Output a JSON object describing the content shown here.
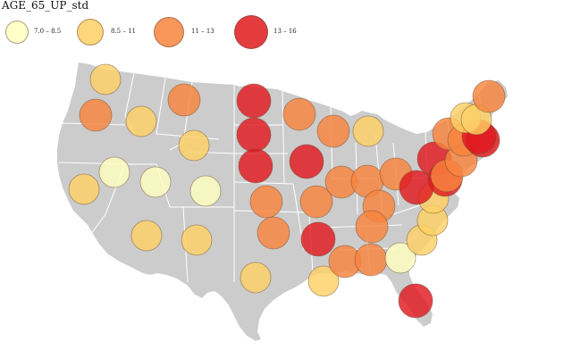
{
  "map": {
    "title": "AGE_65_UP_std",
    "colors": {
      "land": "#cccccc",
      "state_border": "#ffffff"
    }
  },
  "legend": {
    "items": [
      {
        "label": "7.0 – 8.5",
        "color": "#ffffbf"
      },
      {
        "label": "8.5 – 11",
        "color": "#fed165"
      },
      {
        "label": "11 – 13",
        "color": "#f8843e"
      },
      {
        "label": "13 – 16",
        "color": "#e0191e"
      }
    ]
  },
  "bubbles": [
    {
      "state": "WA",
      "class": 2
    },
    {
      "state": "OR",
      "class": 3
    },
    {
      "state": "CA",
      "class": 2
    },
    {
      "state": "ID",
      "class": 2
    },
    {
      "state": "NV",
      "class": 1
    },
    {
      "state": "MT",
      "class": 3
    },
    {
      "state": "WY",
      "class": 2
    },
    {
      "state": "UT",
      "class": 1
    },
    {
      "state": "CO",
      "class": 1
    },
    {
      "state": "AZ",
      "class": 2
    },
    {
      "state": "NM",
      "class": 2
    },
    {
      "state": "ND",
      "class": 4
    },
    {
      "state": "SD",
      "class": 4
    },
    {
      "state": "NE",
      "class": 4
    },
    {
      "state": "KS",
      "class": 3
    },
    {
      "state": "OK",
      "class": 3
    },
    {
      "state": "TX",
      "class": 2
    },
    {
      "state": "MN",
      "class": 3
    },
    {
      "state": "IA",
      "class": 4
    },
    {
      "state": "MO",
      "class": 3
    },
    {
      "state": "AR",
      "class": 4
    },
    {
      "state": "LA",
      "class": 2
    },
    {
      "state": "WI",
      "class": 3
    },
    {
      "state": "IL",
      "class": 3
    },
    {
      "state": "MI",
      "class": 2
    },
    {
      "state": "IN",
      "class": 3
    },
    {
      "state": "OH",
      "class": 3
    },
    {
      "state": "KY",
      "class": 3
    },
    {
      "state": "TN",
      "class": 3
    },
    {
      "state": "MS",
      "class": 3
    },
    {
      "state": "AL",
      "class": 3
    },
    {
      "state": "GA",
      "class": 1
    },
    {
      "state": "FL",
      "class": 4
    },
    {
      "state": "SC",
      "class": 2
    },
    {
      "state": "NC",
      "class": 2
    },
    {
      "state": "VA",
      "class": 2
    },
    {
      "state": "WV",
      "class": 4
    },
    {
      "state": "PA",
      "class": 4
    },
    {
      "state": "MD",
      "class": 4
    },
    {
      "state": "DE",
      "class": 3
    },
    {
      "state": "NJ",
      "class": 3
    },
    {
      "state": "NY",
      "class": 3
    },
    {
      "state": "CT",
      "class": 3
    },
    {
      "state": "RI",
      "class": 4
    },
    {
      "state": "MA",
      "class": 4
    },
    {
      "state": "VT",
      "class": 2
    },
    {
      "state": "NH",
      "class": 2
    },
    {
      "state": "ME",
      "class": 3
    }
  ]
}
